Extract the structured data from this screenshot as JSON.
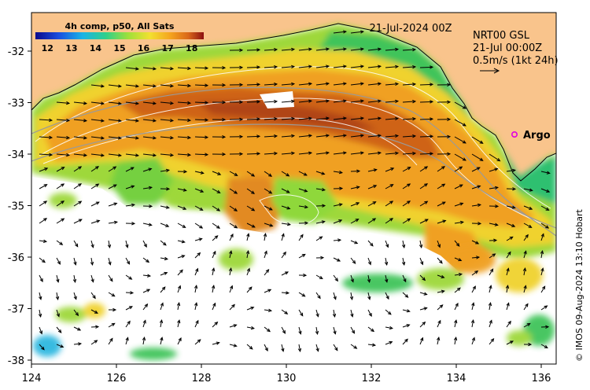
{
  "map": {
    "composite_title": "4h comp, p50, All Sats",
    "date_label": "21-Jul-2024 00Z",
    "current_source": "NRT00 GSL",
    "current_time": "21-Jul 00:00Z",
    "arrow_scale": "0.5m/s (1kt 24h)",
    "argo_label": "Argo",
    "credit": "© IMOS 09-Aug-2024 13:10 Hobart"
  },
  "axes": {
    "longitude_ticks": [
      "124",
      "126",
      "128",
      "130",
      "132",
      "134",
      "136"
    ],
    "latitude_ticks": [
      "-32",
      "-33",
      "-34",
      "-35",
      "-36",
      "-37",
      "-38"
    ]
  },
  "colorbar": {
    "ticks": [
      "12",
      "13",
      "14",
      "15",
      "16",
      "17",
      "18"
    ],
    "min": 11.5,
    "max": 18.5
  },
  "colors": {
    "land": "#f9c48c",
    "no_data": "#ffffff",
    "argo_marker": "#e000e0",
    "coastline": "#000000"
  }
}
